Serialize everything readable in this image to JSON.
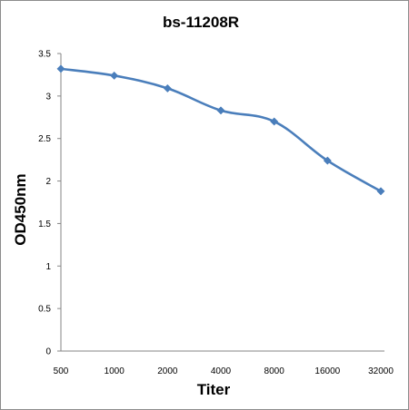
{
  "chart_data": {
    "type": "line",
    "title": "bs-11208R",
    "xlabel": "Titer",
    "ylabel": "OD450nm",
    "categories": [
      "500",
      "1000",
      "2000",
      "4000",
      "8000",
      "16000",
      "32000"
    ],
    "series": [
      {
        "values": [
          3.32,
          3.24,
          3.09,
          2.83,
          2.7,
          2.24,
          1.88
        ]
      }
    ],
    "yticks": [
      "0",
      "0.5",
      "1",
      "1.5",
      "2",
      "2.5",
      "3",
      "3.5"
    ],
    "ylim": [
      0,
      3.5
    ],
    "grid": false,
    "legend": "none",
    "colors": {
      "line": "#4a7ebb",
      "axis": "#868686"
    }
  }
}
